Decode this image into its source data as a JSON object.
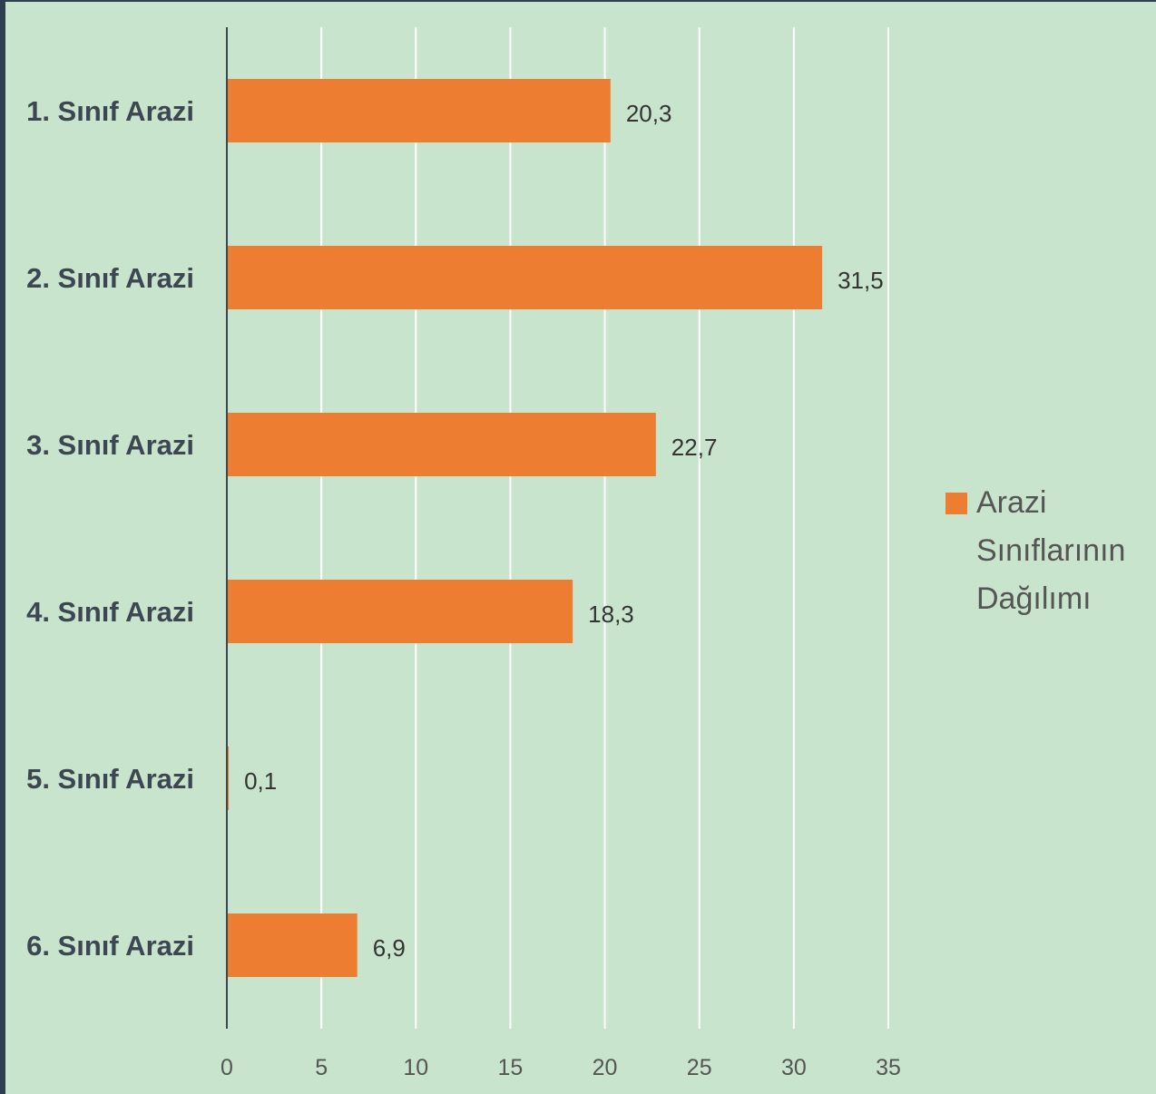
{
  "chart_data": {
    "type": "bar",
    "orientation": "horizontal",
    "categories": [
      "1. Sınıf Arazi",
      "2. Sınıf Arazi",
      "3. Sınıf Arazi",
      "4. Sınıf Arazi",
      "5. Sınıf Arazi",
      "6. Sınıf Arazi"
    ],
    "series": [
      {
        "name": "Arazi Sınıflarının Dağılımı",
        "values": [
          20.3,
          31.5,
          22.7,
          18.3,
          0.1,
          6.9
        ],
        "data_labels": [
          "20,3",
          "31,5",
          "22,7",
          "18,3",
          "0,1",
          "6,9"
        ],
        "color": "#ed7d31"
      }
    ],
    "x_ticks": [
      "0",
      "5",
      "10",
      "15",
      "20",
      "25",
      "30",
      "35"
    ],
    "xlim": [
      0,
      35
    ],
    "grid": true,
    "legend": {
      "position": "right",
      "lines": [
        "Arazi",
        "Sınıflarının",
        "Dağılımı"
      ]
    },
    "background_color": "#c9e4cd",
    "gridline_color": "#ffffff",
    "title": "",
    "xlabel": "",
    "ylabel": ""
  }
}
